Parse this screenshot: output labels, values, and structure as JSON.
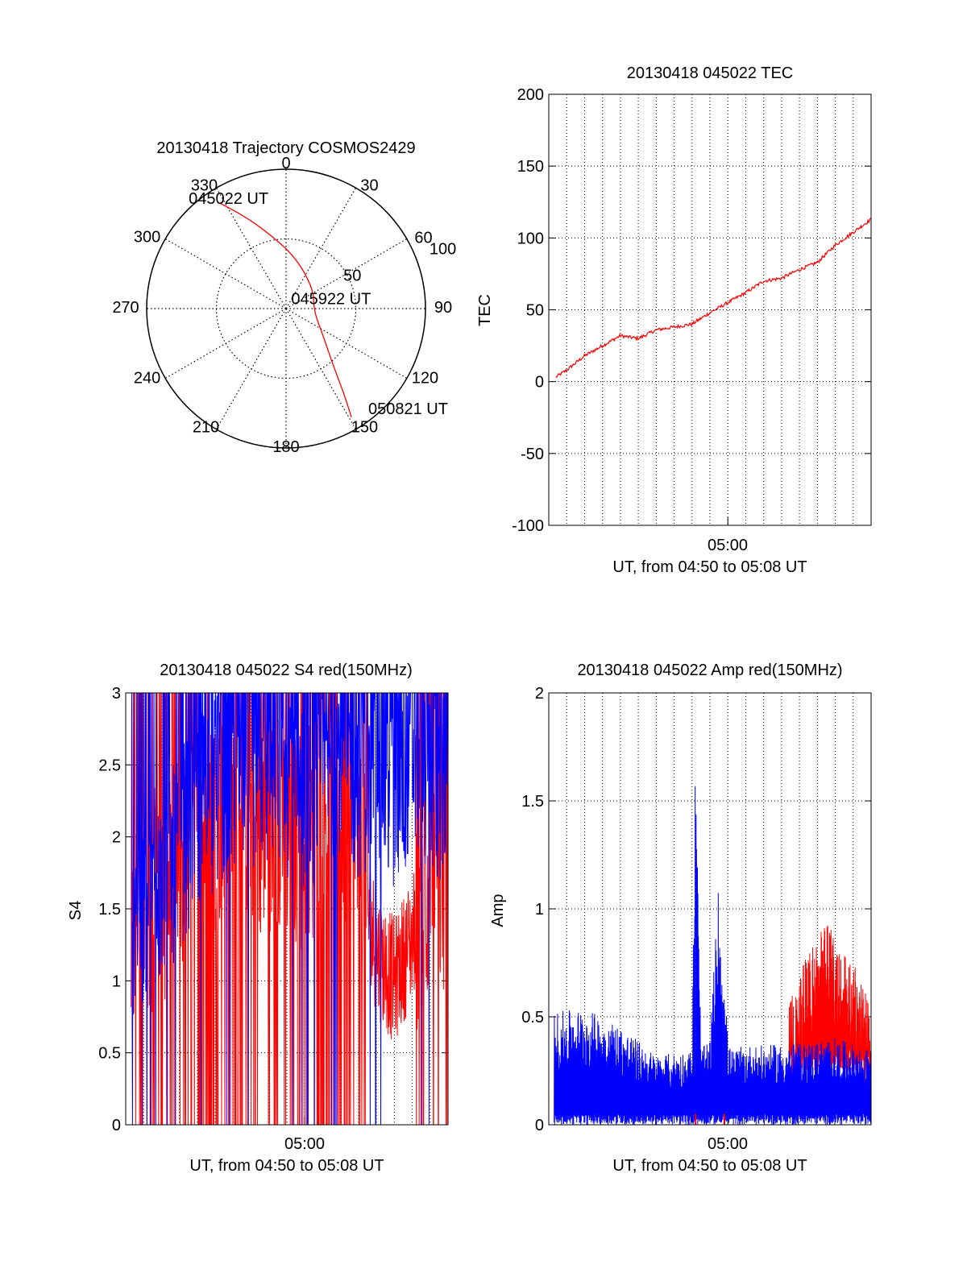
{
  "colors": {
    "red": "#ff0000",
    "blue": "#0000ff",
    "axis": "#000000",
    "grid": "#000000"
  },
  "chart_data": [
    {
      "type": "polar",
      "title": "20130418 Trajectory COSMOS2429",
      "angle_ticks": [
        "0",
        "30",
        "60",
        "90",
        "120",
        "150",
        "180",
        "210",
        "240",
        "270",
        "300",
        "330"
      ],
      "radial_ticks": [
        "50",
        "100"
      ],
      "radial_max": 100,
      "grid": true,
      "track_points": [
        {
          "az": 328,
          "r": 89
        },
        {
          "az": 335,
          "r": 74
        },
        {
          "az": 345,
          "r": 58
        },
        {
          "az": 10,
          "r": 38
        },
        {
          "az": 55,
          "r": 24
        },
        {
          "az": 95,
          "r": 20
        },
        {
          "az": 125,
          "r": 32
        },
        {
          "az": 140,
          "r": 52
        },
        {
          "az": 146,
          "r": 75
        },
        {
          "az": 149,
          "r": 91
        }
      ],
      "annotations": [
        {
          "text": "045022 UT",
          "az": 335,
          "r": 86
        },
        {
          "text": "045922 UT",
          "az": 79,
          "r": 32
        },
        {
          "text": "050821 UT",
          "az": 138,
          "r": 95
        }
      ],
      "track_color": "#ff0000"
    },
    {
      "type": "line",
      "title": "20130418 045022 TEC",
      "ylabel": "TEC",
      "xlabel": "UT, from 04:50 to 05:08 UT",
      "x_range": [
        "04:50",
        "05:08"
      ],
      "x_tick_label": "05:00",
      "ylim": [
        -100,
        200
      ],
      "yticks": [
        "-100",
        "-50",
        "0",
        "50",
        "100",
        "150",
        "200"
      ],
      "grid": true,
      "series": [
        {
          "color": "#ff0000",
          "x_minutes": [
            0,
            1,
            2,
            3,
            4,
            5,
            6,
            7,
            8,
            9,
            10,
            11,
            12,
            13,
            14,
            15,
            16,
            17,
            18
          ],
          "values": [
            0,
            8,
            18,
            25,
            32,
            30,
            36,
            38,
            40,
            48,
            55,
            62,
            70,
            72,
            78,
            83,
            95,
            104,
            113
          ]
        }
      ]
    },
    {
      "type": "line",
      "title": "20130418 045022 S4 red(150MHz)",
      "ylabel": "S4",
      "xlabel": "UT, from 04:50 to 05:08 UT",
      "x_range": [
        "04:50",
        "05:08"
      ],
      "x_tick_label": "05:00",
      "ylim": [
        0,
        3
      ],
      "yticks": [
        "0",
        "0.5",
        "1",
        "1.5",
        "2",
        "2.5",
        "3"
      ],
      "grid": true,
      "series": [
        {
          "color": "#ff0000",
          "x_minutes": [
            0,
            2,
            4,
            6,
            8,
            10,
            12,
            13,
            14,
            15,
            16,
            17,
            18
          ],
          "values": [
            1.5,
            1.6,
            2.0,
            2.2,
            2.1,
            2.0,
            2.2,
            1.9,
            1.2,
            1.0,
            1.3,
            1.8,
            1.5
          ]
        },
        {
          "color": "#0000ff",
          "x_minutes": [
            0,
            2,
            4,
            6,
            8,
            10,
            12,
            13,
            14,
            15,
            16,
            17,
            18
          ],
          "values": [
            1.4,
            1.6,
            2.2,
            2.4,
            2.5,
            2.3,
            2.6,
            2.4,
            2.5,
            2.3,
            2.6,
            2.4,
            2.3
          ]
        }
      ]
    },
    {
      "type": "line",
      "title": "20130418 045022 Amp red(150MHz)",
      "ylabel": "Amp",
      "xlabel": "UT, from 04:50 to 05:08 UT",
      "x_range": [
        "04:50",
        "05:08"
      ],
      "x_tick_label": "05:00",
      "ylim": [
        0,
        2
      ],
      "yticks": [
        "0",
        "0.5",
        "1",
        "1.5",
        "2"
      ],
      "grid": true,
      "series": [
        {
          "color": "#0000ff",
          "x_minutes": [
            0,
            2,
            4,
            6,
            8,
            8.2,
            8.5,
            9,
            9.5,
            10,
            10.2,
            11,
            12,
            14,
            16,
            18
          ],
          "values": [
            0.45,
            0.47,
            0.4,
            0.28,
            0.3,
            1.57,
            0.3,
            0.35,
            1.0,
            0.35,
            0.3,
            0.32,
            0.32,
            0.33,
            0.35,
            0.3
          ]
        },
        {
          "color": "#ff0000",
          "x_minutes": [
            13.5,
            14.5,
            15.5,
            16.5,
            17.5,
            18
          ],
          "values": [
            0.35,
            0.6,
            0.72,
            0.6,
            0.45,
            0.3
          ]
        }
      ]
    }
  ]
}
